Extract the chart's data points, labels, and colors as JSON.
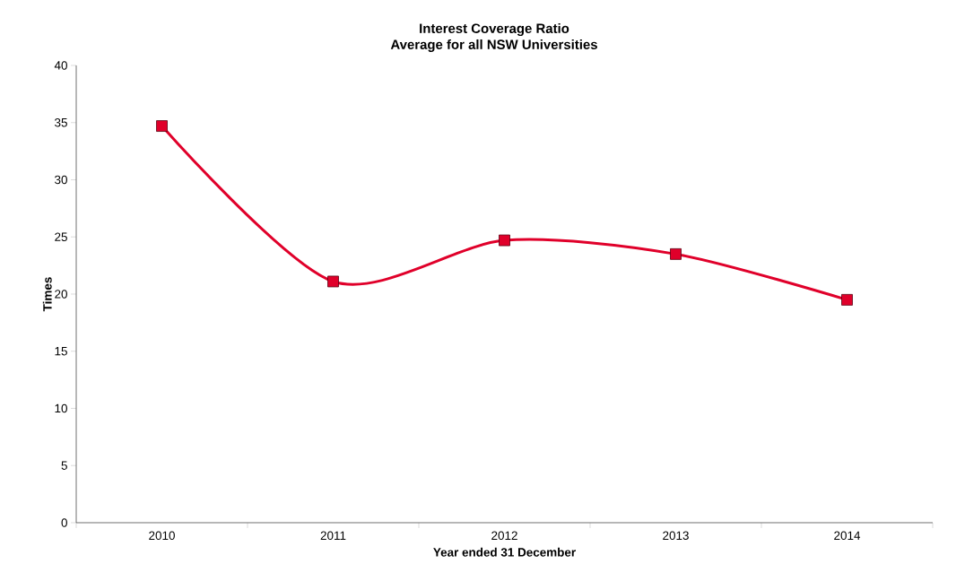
{
  "chart_data": {
    "type": "line",
    "title": "Interest Coverage Ratio",
    "subtitle": "Average for all NSW Universities",
    "xlabel": "Year ended 31 December",
    "ylabel": "Times",
    "categories": [
      "2010",
      "2011",
      "2012",
      "2013",
      "2014"
    ],
    "series": [
      {
        "color": "#e0002a",
        "values": [
          34.7,
          21.1,
          24.7,
          23.5,
          19.5
        ]
      }
    ],
    "ylim": [
      0,
      40
    ],
    "yticks": [
      0,
      5,
      10,
      15,
      20,
      25,
      30,
      35,
      40
    ],
    "marker": "square",
    "line_style": "solid",
    "grid": false
  }
}
